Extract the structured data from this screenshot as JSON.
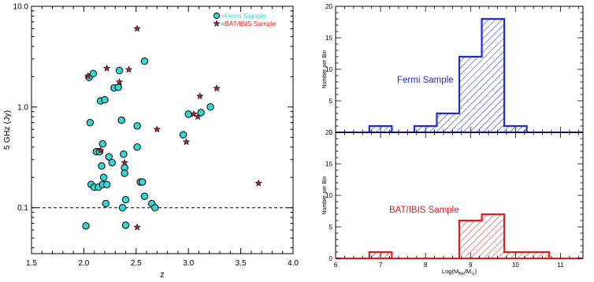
{
  "chart_data": [
    {
      "type": "scatter",
      "xlabel": "z",
      "ylabel": "5 GHz (Jy)",
      "xlim": [
        1.5,
        4.0
      ],
      "ylim": [
        0.035,
        10.0
      ],
      "yscale": "log",
      "x_ticks": [
        "1.5",
        "2.0",
        "2.5",
        "3.0",
        "3.5",
        "4.0"
      ],
      "y_ticks": [
        "0.1",
        "1.0",
        "10.0"
      ],
      "hline": 0.1,
      "legend_position": "top-right",
      "colors": {
        "fermi": "#35d6d6",
        "bat": "#a0252a",
        "bat_label": "#e8231c",
        "dashed": "#000000"
      },
      "series": [
        {
          "name": "=Fermi Sample",
          "marker": "circle",
          "points": [
            [
              2.02,
              0.066
            ],
            [
              2.05,
              1.97
            ],
            [
              2.06,
              0.7
            ],
            [
              2.07,
              0.17
            ],
            [
              2.09,
              2.15
            ],
            [
              2.1,
              0.16
            ],
            [
              2.12,
              0.36
            ],
            [
              2.14,
              0.16
            ],
            [
              2.15,
              0.36
            ],
            [
              2.16,
              1.15
            ],
            [
              2.17,
              0.26
            ],
            [
              2.18,
              0.43
            ],
            [
              2.18,
              0.17
            ],
            [
              2.19,
              0.2
            ],
            [
              2.2,
              1.18
            ],
            [
              2.21,
              0.11
            ],
            [
              2.22,
              0.17
            ],
            [
              2.24,
              0.32
            ],
            [
              2.27,
              0.28
            ],
            [
              2.29,
              1.55
            ],
            [
              2.33,
              1.57
            ],
            [
              2.34,
              2.3
            ],
            [
              2.36,
              0.74
            ],
            [
              2.37,
              0.1
            ],
            [
              2.38,
              0.34
            ],
            [
              2.39,
              0.25
            ],
            [
              2.39,
              0.22
            ],
            [
              2.4,
              0.12
            ],
            [
              2.4,
              0.067
            ],
            [
              2.51,
              0.65
            ],
            [
              2.51,
              0.4
            ],
            [
              2.54,
              0.18
            ],
            [
              2.56,
              0.18
            ],
            [
              2.58,
              2.85
            ],
            [
              2.58,
              0.13
            ],
            [
              2.65,
              0.11
            ],
            [
              2.68,
              0.1
            ],
            [
              2.95,
              0.53
            ],
            [
              3.0,
              0.85
            ],
            [
              3.12,
              0.88
            ],
            [
              3.21,
              1.0
            ]
          ]
        },
        {
          "name": "=BAT/IBIS Sample",
          "marker": "star",
          "points": [
            [
              2.04,
              2.03
            ],
            [
              2.16,
              0.37
            ],
            [
              2.22,
              2.42
            ],
            [
              2.34,
              1.77
            ],
            [
              2.39,
              0.28
            ],
            [
              2.43,
              2.35
            ],
            [
              2.51,
              6.0
            ],
            [
              2.51,
              0.064
            ],
            [
              2.7,
              0.6
            ],
            [
              2.98,
              0.45
            ],
            [
              3.05,
              0.85
            ],
            [
              3.09,
              0.8
            ],
            [
              3.11,
              1.28
            ],
            [
              3.27,
              1.53
            ],
            [
              3.67,
              0.175
            ]
          ]
        }
      ]
    },
    {
      "type": "bar",
      "subtype": "histogram",
      "label": "Fermi Sample",
      "ylabel": "Number per Bin",
      "xlim": [
        6,
        11.5
      ],
      "ylim": [
        0,
        20
      ],
      "bin_width": 0.5,
      "x_ticks": [],
      "y_ticks": [
        "0",
        "5",
        "10",
        "15",
        "20"
      ],
      "color": "#1d2bd9",
      "bins": [
        {
          "start": 6.75,
          "value": 1
        },
        {
          "start": 7.75,
          "value": 1
        },
        {
          "start": 8.25,
          "value": 3
        },
        {
          "start": 8.75,
          "value": 12
        },
        {
          "start": 9.25,
          "value": 18
        },
        {
          "start": 9.75,
          "value": 1
        }
      ]
    },
    {
      "type": "bar",
      "subtype": "histogram",
      "label": "BAT/IBIS Sample",
      "ylabel": "Number per Bin",
      "xlabel": "Log(M_BH/M_⊙)",
      "xlabel_main": "Log(M",
      "xlabel_sub1": "BH",
      "xlabel_mid": "/M",
      "xlabel_sub2": "⊙",
      "xlabel_end": ")",
      "xlim": [
        6,
        11.5
      ],
      "ylim": [
        0,
        20
      ],
      "bin_width": 0.5,
      "x_ticks": [
        "6",
        "7",
        "8",
        "9",
        "10",
        "11"
      ],
      "y_ticks": [
        "0",
        "5",
        "10",
        "15",
        "20"
      ],
      "color": "#de1f1f",
      "bins": [
        {
          "start": 6.75,
          "value": 1
        },
        {
          "start": 8.75,
          "value": 6
        },
        {
          "start": 9.25,
          "value": 7
        },
        {
          "start": 9.75,
          "value": 1
        },
        {
          "start": 10.25,
          "value": 1
        }
      ]
    }
  ]
}
